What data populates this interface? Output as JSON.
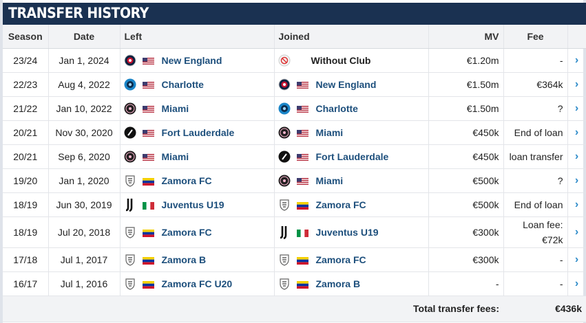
{
  "header": {
    "title": "TRANSFER HISTORY"
  },
  "columns": {
    "season": "Season",
    "date": "Date",
    "left": "Left",
    "joined": "Joined",
    "mv": "MV",
    "fee": "Fee"
  },
  "rows": [
    {
      "season": "23/24",
      "date": "Jan 1, 2024",
      "left_club": "New England",
      "left_logo": "revolution",
      "left_flag": "us",
      "joined_club": "Without Club",
      "joined_logo": "without-club",
      "joined_flag": "",
      "mv": "€1.20m",
      "fee": "-",
      "fee2": ""
    },
    {
      "season": "22/23",
      "date": "Aug 4, 2022",
      "left_club": "Charlotte",
      "left_logo": "charlotte",
      "left_flag": "us",
      "joined_club": "New England",
      "joined_logo": "revolution",
      "joined_flag": "us",
      "mv": "€1.50m",
      "fee": "€364k",
      "fee2": ""
    },
    {
      "season": "21/22",
      "date": "Jan 10, 2022",
      "left_club": "Miami",
      "left_logo": "miami",
      "left_flag": "us",
      "joined_club": "Charlotte",
      "joined_logo": "charlotte",
      "joined_flag": "us",
      "mv": "€1.50m",
      "fee": "?",
      "fee2": ""
    },
    {
      "season": "20/21",
      "date": "Nov 30, 2020",
      "left_club": "Fort Lauderdale",
      "left_logo": "fort-lauderdale",
      "left_flag": "us",
      "joined_club": "Miami",
      "joined_logo": "miami",
      "joined_flag": "us",
      "mv": "€450k",
      "fee": "End of loan",
      "fee2": ""
    },
    {
      "season": "20/21",
      "date": "Sep 6, 2020",
      "left_club": "Miami",
      "left_logo": "miami",
      "left_flag": "us",
      "joined_club": "Fort Lauderdale",
      "joined_logo": "fort-lauderdale",
      "joined_flag": "us",
      "mv": "€450k",
      "fee": "loan transfer",
      "fee2": ""
    },
    {
      "season": "19/20",
      "date": "Jan 1, 2020",
      "left_club": "Zamora FC",
      "left_logo": "zamora",
      "left_flag": "ve",
      "joined_club": "Miami",
      "joined_logo": "miami",
      "joined_flag": "us",
      "mv": "€500k",
      "fee": "?",
      "fee2": ""
    },
    {
      "season": "18/19",
      "date": "Jun 30, 2019",
      "left_club": "Juventus U19",
      "left_logo": "juventus",
      "left_flag": "it",
      "joined_club": "Zamora FC",
      "joined_logo": "zamora",
      "joined_flag": "ve",
      "mv": "€500k",
      "fee": "End of loan",
      "fee2": ""
    },
    {
      "season": "18/19",
      "date": "Jul 20, 2018",
      "left_club": "Zamora FC",
      "left_logo": "zamora",
      "left_flag": "ve",
      "joined_club": "Juventus U19",
      "joined_logo": "juventus",
      "joined_flag": "it",
      "mv": "€300k",
      "fee": "Loan fee:",
      "fee2": "€72k"
    },
    {
      "season": "17/18",
      "date": "Jul 1, 2017",
      "left_club": "Zamora B",
      "left_logo": "zamora",
      "left_flag": "ve",
      "joined_club": "Zamora FC",
      "joined_logo": "zamora",
      "joined_flag": "ve",
      "mv": "€300k",
      "fee": "-",
      "fee2": ""
    },
    {
      "season": "16/17",
      "date": "Jul 1, 2016",
      "left_club": "Zamora FC U20",
      "left_logo": "zamora",
      "left_flag": "ve",
      "joined_club": "Zamora B",
      "joined_logo": "zamora",
      "joined_flag": "ve",
      "mv": "-",
      "fee": "-",
      "fee2": ""
    }
  ],
  "footer": {
    "label": "Total transfer fees:",
    "total": "€436k"
  },
  "colors": {
    "header_bg": "#1a3151",
    "link": "#1d4f7c",
    "chevron": "#2d8bc9",
    "header_row_bg": "#f2f3f5"
  },
  "icons": {
    "chevron": "chevron-right-icon"
  }
}
